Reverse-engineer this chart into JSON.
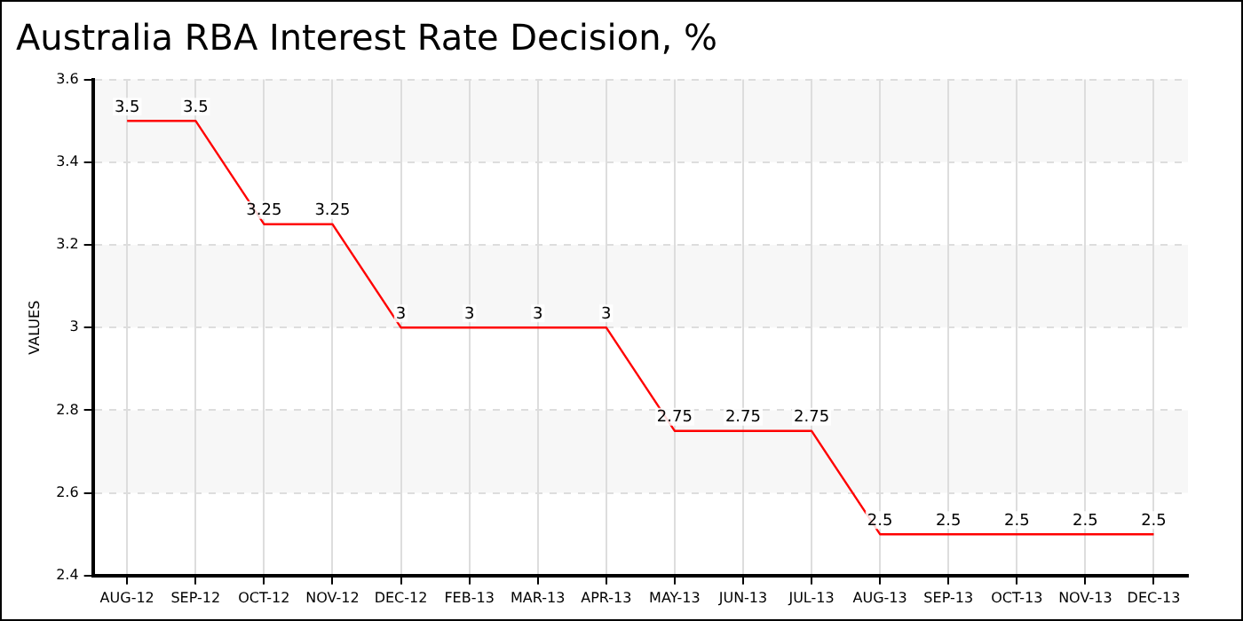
{
  "chart_data": {
    "type": "line",
    "title": "Australia RBA Interest Rate Decision, %",
    "ylabel": "VALUES",
    "categories": [
      "AUG-12",
      "SEP-12",
      "OCT-12",
      "NOV-12",
      "DEC-12",
      "FEB-13",
      "MAR-13",
      "APR-13",
      "MAY-13",
      "JUN-13",
      "JUL-13",
      "AUG-13",
      "SEP-13",
      "OCT-13",
      "NOV-13",
      "DEC-13"
    ],
    "series": [
      {
        "color": "#ff0000",
        "values": [
          3.5,
          3.5,
          3.25,
          3.25,
          3,
          3,
          3,
          3,
          2.75,
          2.75,
          2.75,
          2.5,
          2.5,
          2.5,
          2.5,
          2.5
        ]
      }
    ],
    "ylim": [
      2.4,
      3.6
    ],
    "yticks": [
      2.4,
      2.6,
      2.8,
      3,
      3.2,
      3.4,
      3.6
    ],
    "grid": true,
    "legend": false,
    "data_labels": true,
    "marker": "none",
    "line_style": "solid"
  }
}
